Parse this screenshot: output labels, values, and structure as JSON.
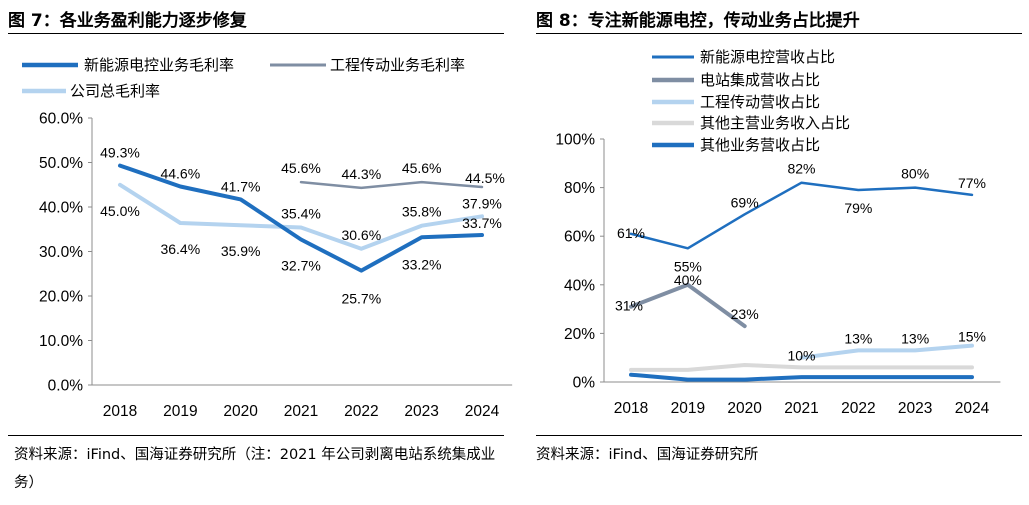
{
  "figures": {
    "left": {
      "title": "图 7：各业务盈利能力逐步修复",
      "source": "资料来源：iFind、国海证券研究所（注：2021 年公司剥离电站系统集成业务）"
    },
    "right": {
      "title": "图 8：专注新能源电控，传动业务占比提升",
      "source": "资料来源：iFind、国海证券研究所"
    }
  },
  "chart_data": [
    {
      "type": "line",
      "title": "各业务盈利能力逐步修复",
      "categories": [
        "2018",
        "2019",
        "2020",
        "2021",
        "2022",
        "2023",
        "2024"
      ],
      "ylim": [
        0,
        60
      ],
      "yticks": [
        "0.0%",
        "10.0%",
        "20.0%",
        "30.0%",
        "40.0%",
        "50.0%",
        "60.0%"
      ],
      "legend_position": "top",
      "series": [
        {
          "name": "新能源电控业务毛利率",
          "color": "#1f6fbf",
          "values": [
            49.3,
            44.6,
            41.7,
            32.7,
            25.7,
            33.2,
            33.7
          ],
          "labels": [
            "49.3%",
            "44.6%",
            "41.7%",
            "32.7%",
            "25.7%",
            "33.2%",
            "33.7%"
          ]
        },
        {
          "name": "工程传动业务毛利率",
          "color": "#7f8ea3",
          "values": [
            null,
            null,
            null,
            45.6,
            44.3,
            45.6,
            44.5
          ],
          "labels": [
            null,
            null,
            null,
            "45.6%",
            "44.3%",
            "45.6%",
            "44.5%"
          ]
        },
        {
          "name": "公司总毛利率",
          "color": "#b4d3ef",
          "values": [
            45.0,
            36.4,
            35.9,
            35.4,
            30.6,
            35.8,
            37.9
          ],
          "labels": [
            "45.0%",
            "36.4%",
            "35.9%",
            "35.4%",
            "30.6%",
            "35.8%",
            "37.9%"
          ]
        }
      ]
    },
    {
      "type": "line",
      "title": "专注新能源电控，传动业务占比提升",
      "categories": [
        "2018",
        "2019",
        "2020",
        "2021",
        "2022",
        "2023",
        "2024"
      ],
      "ylim": [
        0,
        100
      ],
      "yticks": [
        "0%",
        "20%",
        "40%",
        "60%",
        "80%",
        "100%"
      ],
      "legend_position": "top",
      "series": [
        {
          "name": "新能源电控营收占比",
          "color": "#1f6fbf",
          "values": [
            61,
            55,
            69,
            82,
            79,
            80,
            77
          ],
          "labels": [
            "61%",
            "55%",
            "69%",
            "82%",
            "79%",
            "80%",
            "77%"
          ]
        },
        {
          "name": "电站集成营收占比",
          "color": "#7f8ea3",
          "values": [
            31,
            40,
            23,
            null,
            null,
            null,
            null
          ],
          "labels": [
            "31%",
            "40%",
            "23%",
            null,
            null,
            null,
            null
          ]
        },
        {
          "name": "工程传动营收占比",
          "color": "#b4d3ef",
          "values": [
            null,
            null,
            null,
            10,
            13,
            13,
            15
          ],
          "labels": [
            null,
            null,
            null,
            "10%",
            "13%",
            "13%",
            "15%"
          ]
        },
        {
          "name": "其他主营业务收入占比",
          "color": "#d9d9d9",
          "values": [
            5,
            5,
            7,
            6,
            6,
            6,
            6
          ],
          "labels": [
            null,
            null,
            null,
            null,
            null,
            null,
            null
          ]
        },
        {
          "name": "其他业务营收占比",
          "color": "#1f6fbf",
          "values": [
            3,
            1,
            1,
            2,
            2,
            2,
            2
          ],
          "labels": [
            null,
            null,
            null,
            null,
            null,
            null,
            null
          ]
        }
      ]
    }
  ]
}
